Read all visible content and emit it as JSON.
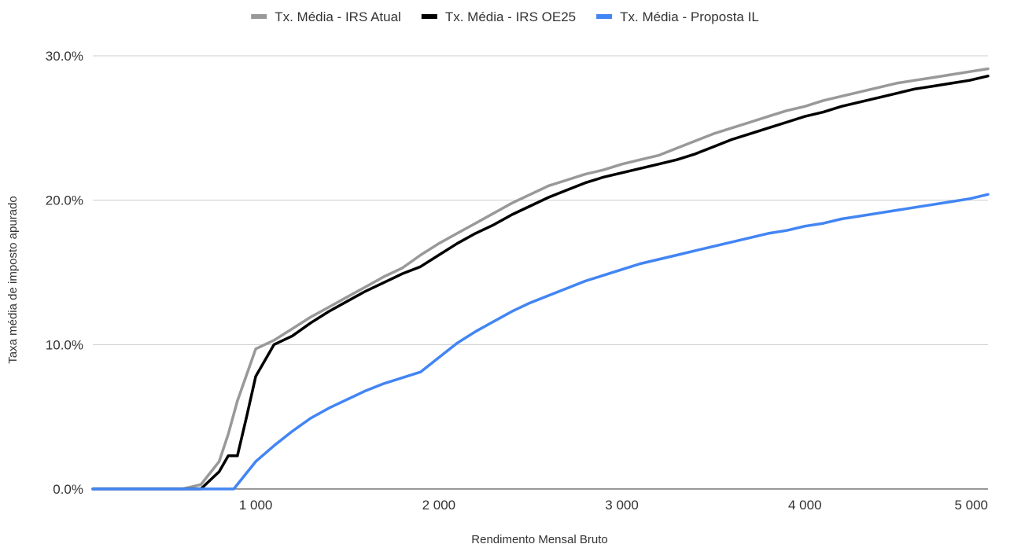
{
  "chart_data": {
    "type": "line",
    "xlabel": "Rendimento Mensal Bruto",
    "ylabel": "Taxa média de imposto apurado",
    "xlim": [
      110,
      5000
    ],
    "ylim": [
      0,
      30
    ],
    "x_ticks": [
      "1 000",
      "2 000",
      "3 000",
      "4 000",
      "5 000"
    ],
    "y_ticks": [
      "0.0%",
      "10.0%",
      "20.0%",
      "30.0%"
    ],
    "legend_position": "top",
    "grid": true,
    "series": [
      {
        "name": "Tx. Média - IRS Atual",
        "color": "#999999",
        "x": [
          110,
          600,
          700,
          800,
          850,
          900,
          1000,
          1100,
          1200,
          1300,
          1400,
          1500,
          1600,
          1700,
          1800,
          1900,
          2000,
          2100,
          2200,
          2300,
          2400,
          2500,
          2600,
          2700,
          2800,
          2900,
          3000,
          3100,
          3200,
          3300,
          3400,
          3500,
          3600,
          3700,
          3800,
          3900,
          4000,
          4100,
          4200,
          4300,
          4400,
          4500,
          4600,
          4700,
          4800,
          4900,
          5000
        ],
        "values": [
          0,
          0,
          0.3,
          1.9,
          3.8,
          6.1,
          9.7,
          10.3,
          11.1,
          11.9,
          12.6,
          13.3,
          14.0,
          14.7,
          15.3,
          16.2,
          17.0,
          17.7,
          18.4,
          19.1,
          19.8,
          20.4,
          21.0,
          21.4,
          21.8,
          22.1,
          22.5,
          22.8,
          23.1,
          23.6,
          24.1,
          24.6,
          25.0,
          25.4,
          25.8,
          26.2,
          26.5,
          26.9,
          27.2,
          27.5,
          27.8,
          28.1,
          28.3,
          28.5,
          28.7,
          28.9,
          29.1
        ]
      },
      {
        "name": "Tx. Média - IRS OE25",
        "color": "#000000",
        "x": [
          110,
          700,
          800,
          850,
          900,
          950,
          1000,
          1100,
          1200,
          1300,
          1400,
          1500,
          1600,
          1700,
          1800,
          1900,
          2000,
          2100,
          2200,
          2300,
          2400,
          2500,
          2600,
          2700,
          2800,
          2900,
          3000,
          3100,
          3200,
          3300,
          3400,
          3500,
          3600,
          3700,
          3800,
          3900,
          4000,
          4100,
          4200,
          4300,
          4400,
          4500,
          4600,
          4700,
          4800,
          4900,
          5000
        ],
        "values": [
          0,
          0,
          1.2,
          2.3,
          2.3,
          5.0,
          7.8,
          10.0,
          10.6,
          11.5,
          12.3,
          13.0,
          13.7,
          14.3,
          14.9,
          15.4,
          16.2,
          17.0,
          17.7,
          18.3,
          19.0,
          19.6,
          20.2,
          20.7,
          21.2,
          21.6,
          21.9,
          22.2,
          22.5,
          22.8,
          23.2,
          23.7,
          24.2,
          24.6,
          25.0,
          25.4,
          25.8,
          26.1,
          26.5,
          26.8,
          27.1,
          27.4,
          27.7,
          27.9,
          28.1,
          28.3,
          28.6
        ]
      },
      {
        "name": "Tx. Média - Proposta IL",
        "color": "#4285f4",
        "x": [
          110,
          880,
          1000,
          1100,
          1200,
          1300,
          1400,
          1500,
          1600,
          1700,
          1800,
          1900,
          2000,
          2100,
          2200,
          2300,
          2400,
          2500,
          2600,
          2700,
          2800,
          2900,
          3000,
          3100,
          3200,
          3300,
          3400,
          3500,
          3600,
          3700,
          3800,
          3900,
          4000,
          4100,
          4200,
          4300,
          4400,
          4500,
          4600,
          4700,
          4800,
          4900,
          5000
        ],
        "values": [
          0,
          0,
          1.9,
          3.0,
          4.0,
          4.9,
          5.6,
          6.2,
          6.8,
          7.3,
          7.7,
          8.1,
          9.1,
          10.1,
          10.9,
          11.6,
          12.3,
          12.9,
          13.4,
          13.9,
          14.4,
          14.8,
          15.2,
          15.6,
          15.9,
          16.2,
          16.5,
          16.8,
          17.1,
          17.4,
          17.7,
          17.9,
          18.2,
          18.4,
          18.7,
          18.9,
          19.1,
          19.3,
          19.5,
          19.7,
          19.9,
          20.1,
          20.4
        ]
      }
    ]
  }
}
